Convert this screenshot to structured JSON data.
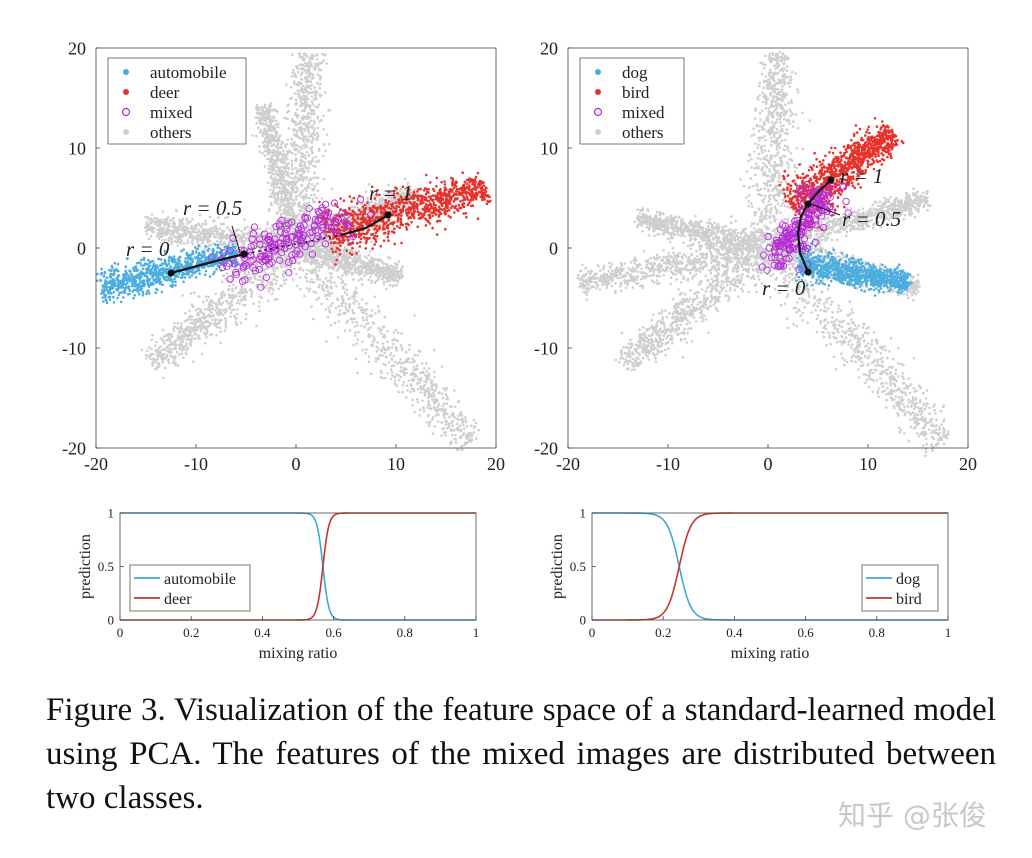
{
  "figure": {
    "caption": "Figure 3. Visualization of the feature space of a standard-learned model using PCA. The features of the mixed images are distributed between two classes.",
    "watermark": "知乎 @张俊",
    "colors": {
      "class_a": "#4aaee0",
      "class_b": "#e8312a",
      "mixed": "#b52bd6",
      "others": "#cfcfcf",
      "pred_a": "#3fa8d6",
      "pred_b": "#c0392b"
    }
  },
  "chart_data": [
    {
      "type": "scatter",
      "title": "",
      "xlabel": "",
      "ylabel": "",
      "xlim": [
        -20,
        20
      ],
      "ylim": [
        -20,
        20
      ],
      "xticks": [
        -20,
        -10,
        0,
        10,
        20
      ],
      "yticks": [
        -20,
        -10,
        0,
        10,
        20
      ],
      "grid": false,
      "legend_position": "top-left",
      "legend": [
        "automobile",
        "deer",
        "mixed",
        "others"
      ],
      "others_arms": [
        {
          "from": [
            0,
            0
          ],
          "to": [
            1.2,
            19.5
          ],
          "width": 1.3
        },
        {
          "from": [
            0,
            0
          ],
          "to": [
            17.5,
            -19.5
          ],
          "width": 1.5
        },
        {
          "from": [
            0,
            0
          ],
          "to": [
            -14.5,
            -11.5
          ],
          "width": 1.3
        },
        {
          "from": [
            0,
            0
          ],
          "to": [
            -15,
            2.3
          ],
          "width": 1.0
        },
        {
          "from": [
            0,
            0
          ],
          "to": [
            -3.2,
            14.2
          ],
          "width": 0.8
        },
        {
          "from": [
            0,
            0
          ],
          "to": [
            12,
            5.5
          ],
          "width": 1.0
        },
        {
          "from": [
            0,
            0
          ],
          "to": [
            10.5,
            -2.8
          ],
          "width": 0.8
        }
      ],
      "class_a": {
        "name": "automobile",
        "from": [
          -19.5,
          -4
        ],
        "to": [
          -6,
          -0.5
        ],
        "width": 0.9
      },
      "class_b": {
        "name": "deer",
        "from": [
          3,
          1.5
        ],
        "to": [
          19,
          6
        ],
        "width": 1.3
      },
      "mixed_region": {
        "from": [
          -6.5,
          -1.5
        ],
        "to": [
          5,
          3
        ],
        "spread": 1.6
      },
      "path": [
        [
          -12.5,
          -2.5
        ],
        [
          -8,
          -1.3
        ],
        [
          -5.2,
          -0.6
        ],
        [
          -2,
          0
        ],
        [
          1.5,
          0.7
        ],
        [
          4.5,
          1.3
        ],
        [
          7,
          2
        ],
        [
          9.2,
          3.3
        ]
      ],
      "path_points": [
        [
          -12.5,
          -2.5
        ],
        [
          -5.2,
          -0.6
        ],
        [
          9.2,
          3.3
        ]
      ],
      "annotations": [
        {
          "text": "r = 0",
          "x": -17,
          "y": -0.8
        },
        {
          "text": "r = 0.5",
          "x": -11.3,
          "y": 3.3
        },
        {
          "text": "r = 1",
          "x": 7.3,
          "y": 4.8
        }
      ]
    },
    {
      "type": "scatter",
      "title": "",
      "xlabel": "",
      "ylabel": "",
      "xlim": [
        -20,
        20
      ],
      "ylim": [
        -20,
        20
      ],
      "xticks": [
        -20,
        -10,
        0,
        10,
        20
      ],
      "yticks": [
        -20,
        -10,
        0,
        10,
        20
      ],
      "grid": false,
      "legend_position": "top-left",
      "legend": [
        "dog",
        "bird",
        "mixed",
        "others"
      ],
      "others_arms": [
        {
          "from": [
            0,
            0
          ],
          "to": [
            1.0,
            19.5
          ],
          "width": 1.3
        },
        {
          "from": [
            0,
            0
          ],
          "to": [
            17.5,
            -19.5
          ],
          "width": 1.5
        },
        {
          "from": [
            0,
            0
          ],
          "to": [
            -14.5,
            -11.5
          ],
          "width": 1.3
        },
        {
          "from": [
            0,
            0
          ],
          "to": [
            -19,
            -3.5
          ],
          "width": 1.0
        },
        {
          "from": [
            0,
            0
          ],
          "to": [
            -13,
            3
          ],
          "width": 0.8
        },
        {
          "from": [
            0,
            0
          ],
          "to": [
            16,
            5
          ],
          "width": 0.8
        },
        {
          "from": [
            0,
            0
          ],
          "to": [
            15,
            -4
          ],
          "width": 0.8
        }
      ],
      "class_a": {
        "name": "dog",
        "from": [
          3,
          -1.5
        ],
        "to": [
          14,
          -3.5
        ],
        "width": 0.8
      },
      "class_b": {
        "name": "bird",
        "from": [
          2.5,
          4
        ],
        "to": [
          12.5,
          11.5
        ],
        "width": 1.3
      },
      "mixed_region": {
        "from": [
          1,
          -1
        ],
        "to": [
          5.5,
          5.5
        ],
        "spread": 1.3
      },
      "path": [
        [
          4,
          -2.4
        ],
        [
          3.2,
          -0.5
        ],
        [
          3.0,
          1.5
        ],
        [
          3.3,
          3.2
        ],
        [
          4.0,
          4.4
        ],
        [
          5.0,
          5.6
        ],
        [
          6.3,
          6.8
        ]
      ],
      "path_points": [
        [
          4,
          -2.4
        ],
        [
          4.0,
          4.4
        ],
        [
          6.3,
          6.8
        ]
      ],
      "annotations": [
        {
          "text": "r = 1",
          "x": 7.2,
          "y": 6.5
        },
        {
          "text": "r = 0.5",
          "x": 7.4,
          "y": 2.2
        },
        {
          "text": "r = 0",
          "x": -0.6,
          "y": -4.7
        }
      ]
    },
    {
      "type": "line",
      "title": "",
      "xlabel": "mixing ratio",
      "ylabel": "prediction",
      "xlim": [
        0,
        1
      ],
      "ylim": [
        0,
        1
      ],
      "xticks": [
        0,
        0.2,
        0.4,
        0.6,
        0.8,
        1
      ],
      "yticks": [
        0,
        0.5,
        1
      ],
      "grid": false,
      "legend_position": "bottom-left",
      "series": [
        {
          "name": "automobile",
          "shape": "falling",
          "center": 0.57,
          "steepness": 120
        },
        {
          "name": "deer",
          "shape": "rising",
          "center": 0.57,
          "steepness": 120
        }
      ]
    },
    {
      "type": "line",
      "title": "",
      "xlabel": "mixing ratio",
      "ylabel": "prediction",
      "xlim": [
        0,
        1
      ],
      "ylim": [
        0,
        1
      ],
      "xticks": [
        0,
        0.2,
        0.4,
        0.6,
        0.8,
        1
      ],
      "yticks": [
        0,
        0.5,
        1
      ],
      "grid": false,
      "legend_position": "bottom-right",
      "series": [
        {
          "name": "dog",
          "shape": "falling",
          "center": 0.245,
          "steepness": 60
        },
        {
          "name": "bird",
          "shape": "rising",
          "center": 0.245,
          "steepness": 60
        }
      ]
    }
  ]
}
